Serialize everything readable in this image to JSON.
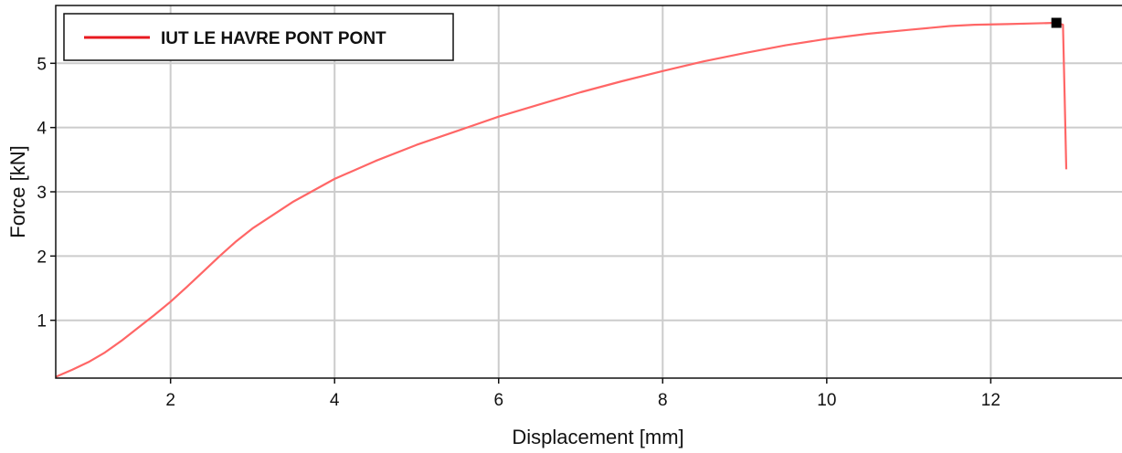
{
  "chart_data": {
    "type": "line",
    "xlabel": "Displacement [mm]",
    "ylabel": "Force [kN]",
    "xlim": [
      0.6,
      13.6
    ],
    "ylim": [
      0.1,
      5.9
    ],
    "xticks": [
      2,
      4,
      6,
      8,
      10,
      12
    ],
    "yticks": [
      1,
      2,
      3,
      4,
      5
    ],
    "grid": true,
    "legend_position": "top-left",
    "series": [
      {
        "name": "IUT LE HAVRE PONT PONT",
        "color": "#ff6666",
        "legend_color": "#e8191f",
        "x": [
          0.6,
          0.8,
          1.0,
          1.2,
          1.4,
          1.6,
          1.8,
          2.0,
          2.2,
          2.4,
          2.6,
          2.8,
          3.0,
          3.5,
          4.0,
          4.5,
          5.0,
          5.5,
          6.0,
          6.5,
          7.0,
          7.5,
          8.0,
          8.5,
          9.0,
          9.5,
          10.0,
          10.5,
          11.0,
          11.5,
          11.8,
          12.2,
          12.5,
          12.8,
          12.88,
          12.9,
          12.92
        ],
        "y": [
          0.12,
          0.23,
          0.35,
          0.5,
          0.68,
          0.88,
          1.08,
          1.29,
          1.52,
          1.76,
          2.0,
          2.23,
          2.43,
          2.85,
          3.2,
          3.48,
          3.73,
          3.95,
          4.17,
          4.36,
          4.55,
          4.72,
          4.88,
          5.03,
          5.16,
          5.28,
          5.38,
          5.46,
          5.52,
          5.58,
          5.6,
          5.61,
          5.62,
          5.63,
          5.6,
          4.5,
          3.35
        ]
      }
    ],
    "markers": [
      {
        "x": 12.8,
        "y": 5.63,
        "shape": "square",
        "color": "#000000"
      }
    ]
  }
}
